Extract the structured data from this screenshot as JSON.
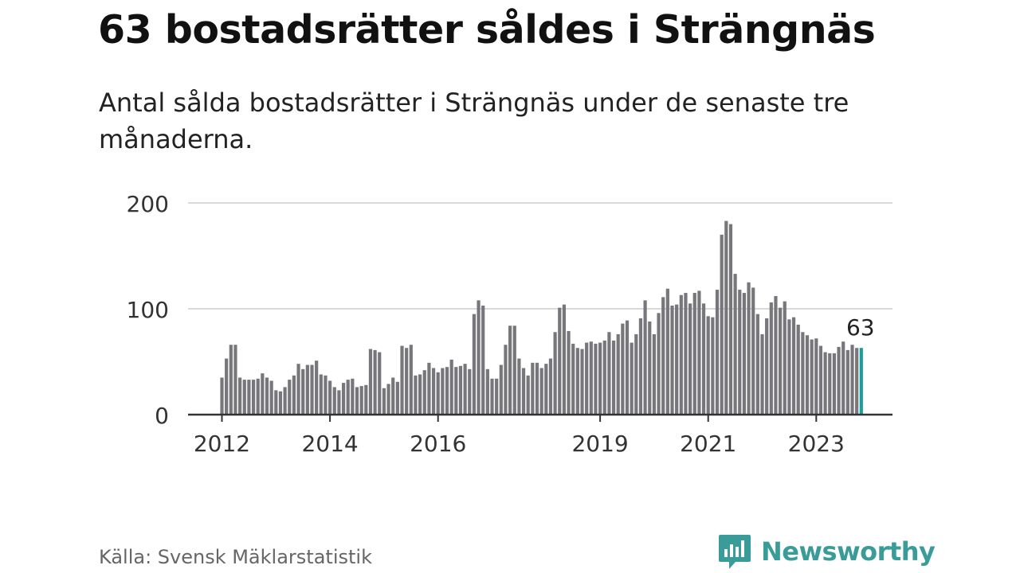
{
  "title": "63 bostadsrätter såldes i Strängnäs",
  "subtitle": "Antal sålda bostadsrätter i Strängnäs under de senaste tre månaderna.",
  "source": "Källa: Svensk Mäklarstatistik",
  "brand": "Newsworthy",
  "colors": {
    "bar": "#77767b",
    "highlight": "#1b9e9a",
    "grid": "#d9d9d9",
    "axis": "#333333",
    "brand": "#3a9c99"
  },
  "chart_data": {
    "type": "bar",
    "x_start": "2012-01",
    "frequency": "monthly",
    "values": [
      35,
      53,
      66,
      66,
      35,
      33,
      33,
      33,
      34,
      39,
      35,
      32,
      23,
      22,
      26,
      33,
      37,
      48,
      43,
      47,
      47,
      51,
      38,
      37,
      32,
      26,
      23,
      30,
      33,
      34,
      26,
      27,
      28,
      62,
      61,
      59,
      25,
      29,
      35,
      31,
      65,
      63,
      66,
      37,
      38,
      42,
      49,
      44,
      40,
      44,
      45,
      52,
      45,
      46,
      48,
      43,
      95,
      108,
      103,
      43,
      34,
      34,
      47,
      66,
      84,
      84,
      53,
      44,
      37,
      49,
      49,
      44,
      48,
      53,
      78,
      101,
      104,
      79,
      67,
      63,
      62,
      68,
      69,
      67,
      68,
      70,
      78,
      70,
      76,
      86,
      89,
      68,
      76,
      91,
      108,
      88,
      76,
      96,
      111,
      119,
      103,
      104,
      113,
      115,
      105,
      115,
      117,
      105,
      93,
      92,
      118,
      170,
      183,
      180,
      133,
      118,
      115,
      125,
      120,
      95,
      76,
      91,
      106,
      112,
      101,
      107,
      90,
      92,
      85,
      78,
      75,
      71,
      72,
      65,
      59,
      58,
      58,
      64,
      69,
      61,
      66,
      63,
      63
    ],
    "highlight_last": true,
    "data_label": "63",
    "ylim": [
      0,
      200
    ],
    "yticks": [
      0,
      100,
      200
    ],
    "xticks": [
      {
        "label": "2012",
        "index": 0
      },
      {
        "label": "2014",
        "index": 24
      },
      {
        "label": "2016",
        "index": 48
      },
      {
        "label": "2019",
        "index": 84
      },
      {
        "label": "2021",
        "index": 108
      },
      {
        "label": "2023",
        "index": 132
      }
    ],
    "grid": true,
    "legend": "none"
  }
}
